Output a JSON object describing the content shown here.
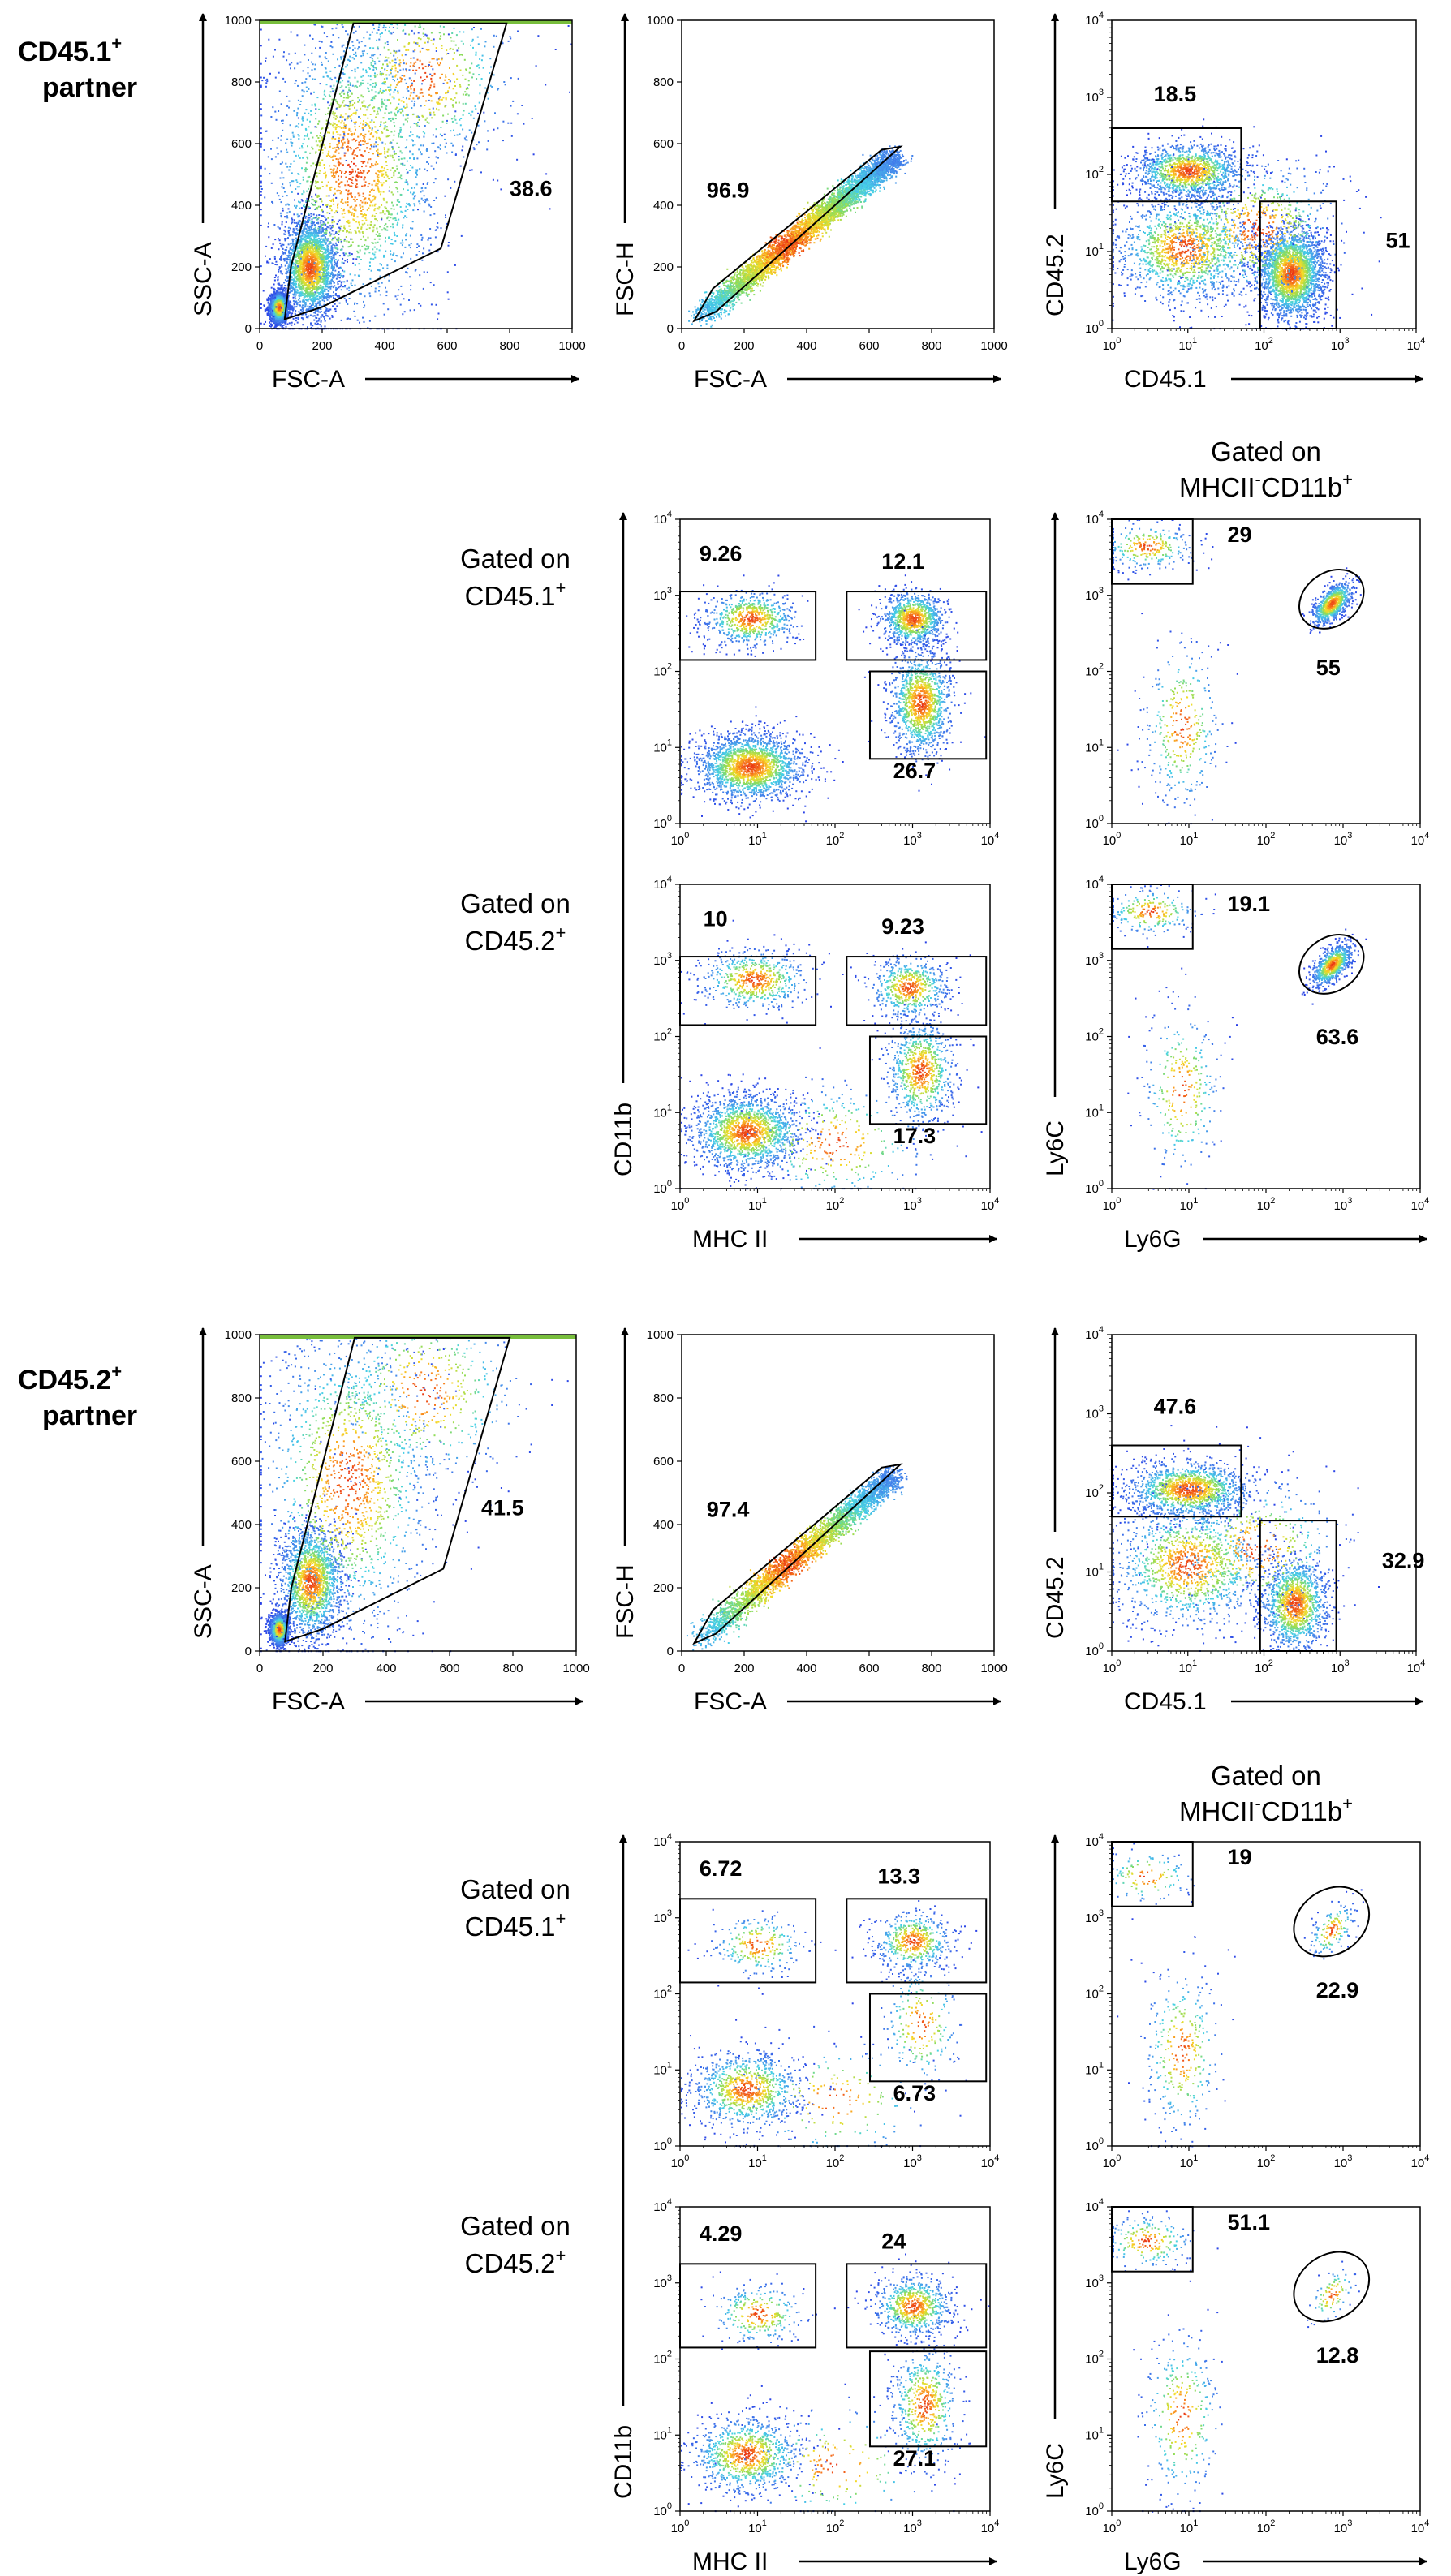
{
  "labels": {
    "partner1_line1": "CD45.1",
    "partner1_sup": "+",
    "partner1_line2": "partner",
    "partner2_line1": "CD45.2",
    "partner2_sup": "+",
    "partner2_line2": "partner",
    "gated_cd451_line1": "Gated on",
    "gated_cd451_line2": "CD45.1",
    "gated_cd451_sup": "+",
    "gated_cd452_line1": "Gated on",
    "gated_cd452_line2": "CD45.2",
    "gated_cd452_sup": "+",
    "gated_mhc_line1": "Gated on",
    "gated_mhc_line2a": "MHCII",
    "gated_mhc_sup1": "-",
    "gated_mhc_line2b": "CD11b",
    "gated_mhc_sup2": "+"
  },
  "axis_labels": {
    "fsc_a": "FSC-A",
    "ssc_a": "SSC-A",
    "fsc_h": "FSC-H",
    "cd45_1": "CD45.1",
    "cd45_2": "CD45.2",
    "cd11b": "CD11b",
    "mhc_ii": "MHC II",
    "ly6c": "Ly6C",
    "ly6g": "Ly6G"
  },
  "chart_data": [
    {
      "id": "p1-ssc-fsc",
      "type": "scatter",
      "xlabel": "FSC-A",
      "ylabel": "SSC-A",
      "xscale": "linear",
      "yscale": "linear",
      "xlim": [
        0,
        1000
      ],
      "ylim": [
        0,
        1000
      ],
      "xticks": [
        "0",
        "200",
        "400",
        "600",
        "800",
        "1000"
      ],
      "yticks": [
        "0",
        "200",
        "400",
        "600",
        "800",
        "1000"
      ],
      "gates": [
        {
          "value": "38.6"
        }
      ]
    },
    {
      "id": "p1-fsch-fsca",
      "type": "scatter",
      "xlabel": "FSC-A",
      "ylabel": "FSC-H",
      "xscale": "linear",
      "yscale": "linear",
      "xlim": [
        0,
        1000
      ],
      "ylim": [
        0,
        1000
      ],
      "xticks": [
        "0",
        "200",
        "400",
        "600",
        "800",
        "1000"
      ],
      "yticks": [
        "0",
        "200",
        "400",
        "600",
        "800",
        "1000"
      ],
      "gates": [
        {
          "value": "96.9"
        }
      ]
    },
    {
      "id": "p1-cd452-cd451",
      "type": "scatter",
      "xlabel": "CD45.1",
      "ylabel": "CD45.2",
      "xscale": "log",
      "yscale": "log",
      "xlim": [
        1,
        10000
      ],
      "ylim": [
        1,
        10000
      ],
      "gates": [
        {
          "value": "18.5"
        },
        {
          "value": "51"
        }
      ]
    },
    {
      "id": "p1-c1-cd11b-mhc",
      "type": "scatter",
      "xlabel": "",
      "ylabel": "",
      "xscale": "log",
      "yscale": "log",
      "xlim": [
        1,
        10000
      ],
      "ylim": [
        1,
        10000
      ],
      "gates": [
        {
          "value": "9.26"
        },
        {
          "value": "12.1"
        },
        {
          "value": "26.7"
        }
      ]
    },
    {
      "id": "p1-c1-ly6c-ly6g",
      "type": "scatter",
      "xlabel": "",
      "ylabel": "",
      "xscale": "log",
      "yscale": "log",
      "xlim": [
        1,
        10000
      ],
      "ylim": [
        1,
        10000
      ],
      "gates": [
        {
          "value": "29"
        },
        {
          "value": "55"
        }
      ]
    },
    {
      "id": "p1-c2-cd11b-mhc",
      "type": "scatter",
      "xlabel": "MHC II",
      "ylabel": "CD11b",
      "xscale": "log",
      "yscale": "log",
      "xlim": [
        1,
        10000
      ],
      "ylim": [
        1,
        10000
      ],
      "gates": [
        {
          "value": "10"
        },
        {
          "value": "9.23"
        },
        {
          "value": "17.3"
        }
      ]
    },
    {
      "id": "p1-c2-ly6c-ly6g",
      "type": "scatter",
      "xlabel": "Ly6G",
      "ylabel": "Ly6C",
      "xscale": "log",
      "yscale": "log",
      "xlim": [
        1,
        10000
      ],
      "ylim": [
        1,
        10000
      ],
      "gates": [
        {
          "value": "19.1"
        },
        {
          "value": "63.6"
        }
      ]
    },
    {
      "id": "p2-ssc-fsc",
      "type": "scatter",
      "xlabel": "FSC-A",
      "ylabel": "SSC-A",
      "xscale": "linear",
      "yscale": "linear",
      "xlim": [
        0,
        1000
      ],
      "ylim": [
        0,
        1000
      ],
      "xticks": [
        "0",
        "200",
        "400",
        "600",
        "800",
        "1000"
      ],
      "yticks": [
        "0",
        "200",
        "400",
        "600",
        "800",
        "1000"
      ],
      "gates": [
        {
          "value": "41.5"
        }
      ]
    },
    {
      "id": "p2-fsch-fsca",
      "type": "scatter",
      "xlabel": "FSC-A",
      "ylabel": "FSC-H",
      "xscale": "linear",
      "yscale": "linear",
      "xlim": [
        0,
        1000
      ],
      "ylim": [
        0,
        1000
      ],
      "xticks": [
        "0",
        "200",
        "400",
        "600",
        "800",
        "1000"
      ],
      "yticks": [
        "0",
        "200",
        "400",
        "600",
        "800",
        "1000"
      ],
      "gates": [
        {
          "value": "97.4"
        }
      ]
    },
    {
      "id": "p2-cd452-cd451",
      "type": "scatter",
      "xlabel": "CD45.1",
      "ylabel": "CD45.2",
      "xscale": "log",
      "yscale": "log",
      "xlim": [
        1,
        10000
      ],
      "ylim": [
        1,
        10000
      ],
      "gates": [
        {
          "value": "47.6"
        },
        {
          "value": "32.9"
        }
      ]
    },
    {
      "id": "p2-c1-cd11b-mhc",
      "type": "scatter",
      "xlabel": "",
      "ylabel": "",
      "xscale": "log",
      "yscale": "log",
      "xlim": [
        1,
        10000
      ],
      "ylim": [
        1,
        10000
      ],
      "gates": [
        {
          "value": "6.72"
        },
        {
          "value": "13.3"
        },
        {
          "value": "6.73"
        }
      ]
    },
    {
      "id": "p2-c1-ly6c-ly6g",
      "type": "scatter",
      "xlabel": "",
      "ylabel": "",
      "xscale": "log",
      "yscale": "log",
      "xlim": [
        1,
        10000
      ],
      "ylim": [
        1,
        10000
      ],
      "gates": [
        {
          "value": "19"
        },
        {
          "value": "22.9"
        }
      ]
    },
    {
      "id": "p2-c2-cd11b-mhc",
      "type": "scatter",
      "xlabel": "MHC II",
      "ylabel": "CD11b",
      "xscale": "log",
      "yscale": "log",
      "xlim": [
        1,
        10000
      ],
      "ylim": [
        1,
        10000
      ],
      "gates": [
        {
          "value": "4.29"
        },
        {
          "value": "24"
        },
        {
          "value": "27.1"
        }
      ]
    },
    {
      "id": "p2-c2-ly6c-ly6g",
      "type": "scatter",
      "xlabel": "Ly6G",
      "ylabel": "Ly6C",
      "xscale": "log",
      "yscale": "log",
      "xlim": [
        1,
        10000
      ],
      "ylim": [
        1,
        10000
      ],
      "gates": [
        {
          "value": "51.1"
        },
        {
          "value": "12.8"
        }
      ]
    }
  ]
}
